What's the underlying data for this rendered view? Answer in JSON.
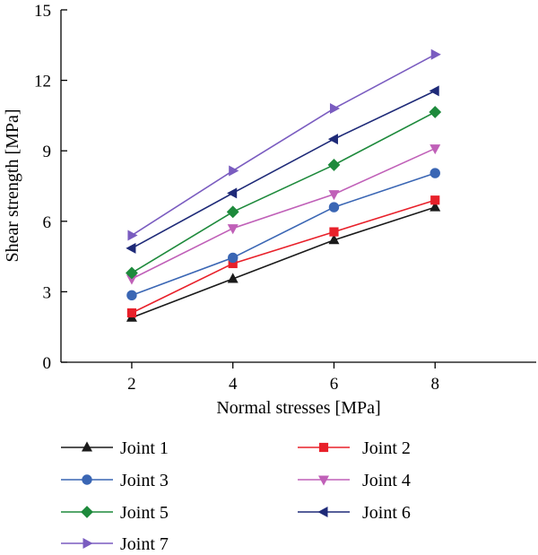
{
  "chart_data": {
    "type": "line",
    "xlabel": "Normal stresses [MPa]",
    "ylabel": "Shear strength [MPa]",
    "x": [
      2,
      4,
      6,
      8
    ],
    "xlim": [
      0.6,
      10
    ],
    "ylim": [
      0,
      15
    ],
    "xticks": [
      2,
      4,
      6,
      8
    ],
    "yticks": [
      0,
      3,
      6,
      9,
      12,
      15
    ],
    "grid": false,
    "legend_position": "below",
    "series": [
      {
        "name": "Joint 1",
        "values": [
          1.9,
          3.55,
          5.2,
          6.6
        ],
        "color": "#1a1a1a",
        "marker": "triangle-up"
      },
      {
        "name": "Joint 2",
        "values": [
          2.1,
          4.2,
          5.55,
          6.9
        ],
        "color": "#e8202a",
        "marker": "square"
      },
      {
        "name": "Joint 3",
        "values": [
          2.85,
          4.45,
          6.6,
          8.05
        ],
        "color": "#3a66b4",
        "marker": "circle"
      },
      {
        "name": "Joint 4",
        "values": [
          3.55,
          5.7,
          7.15,
          9.1
        ],
        "color": "#c060b8",
        "marker": "triangle-down"
      },
      {
        "name": "Joint 5",
        "values": [
          3.8,
          6.4,
          8.4,
          10.65
        ],
        "color": "#1e8a3c",
        "marker": "diamond"
      },
      {
        "name": "Joint 6",
        "values": [
          4.85,
          7.2,
          9.5,
          11.55
        ],
        "color": "#1e2a78",
        "marker": "triangle-left"
      },
      {
        "name": "Joint 7",
        "values": [
          5.4,
          8.15,
          10.8,
          13.1
        ],
        "color": "#7a5cc0",
        "marker": "triangle-right"
      }
    ]
  }
}
